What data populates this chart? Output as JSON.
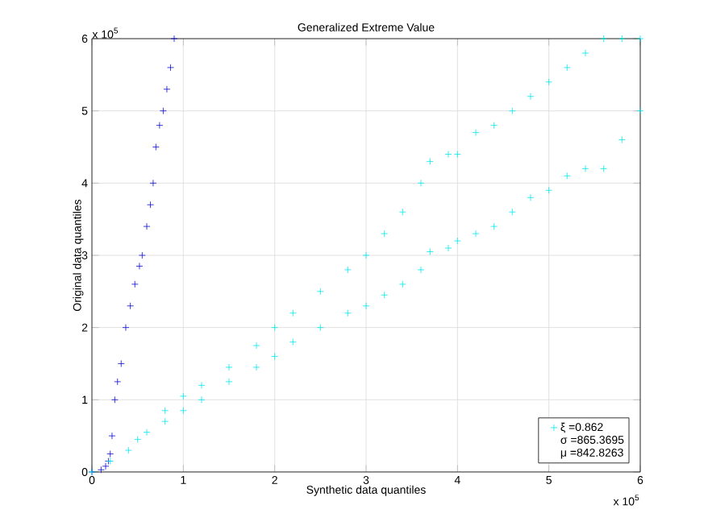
{
  "chart_data": {
    "type": "scatter",
    "title": "Generalized Extreme Value",
    "xlabel": "Synthetic data quantiles",
    "ylabel": "Original data quantiles",
    "xlim": [
      0,
      6
    ],
    "ylim": [
      0,
      6
    ],
    "xticks": [
      0,
      1,
      2,
      3,
      4,
      5,
      6
    ],
    "yticks": [
      0,
      1,
      2,
      3,
      4,
      5,
      6
    ],
    "grid": true,
    "marker": "cross",
    "legend": "bottom right",
    "annotations": [
      "σ =865.3695",
      "μ =842.8263",
      "x 10$^{5}$",
      "x 10$^{5}$"
    ],
    "series": [
      {
        "color": "#0a0ad2",
        "x": [
          0,
          0.1,
          0.15,
          0.18,
          0.2,
          0.22,
          0.25,
          0.28,
          0.32,
          0.37,
          0.42,
          0.47,
          0.52,
          0.55,
          0.6,
          0.64,
          0.67,
          0.7,
          0.74,
          0.78,
          0.82,
          0.86,
          0.9
        ],
        "values": [
          0,
          0.03,
          0.08,
          0.15,
          0.25,
          0.5,
          1.0,
          1.25,
          1.5,
          2.0,
          2.3,
          2.6,
          2.85,
          3.0,
          3.4,
          3.7,
          4.0,
          4.5,
          4.8,
          5.0,
          5.3,
          5.6,
          6.0
        ]
      },
      {
        "name": "ξ =0.862",
        "color": "#00e8f0",
        "x": [
          0,
          0.2,
          0.4,
          0.5,
          0.6,
          0.8,
          0.8,
          1.0,
          1.0,
          1.2,
          1.2,
          1.5,
          1.5,
          1.8,
          1.8,
          2.0,
          2.0,
          2.2,
          2.2,
          2.5,
          2.5,
          2.8,
          2.8,
          3.0,
          3.0,
          3.2,
          3.2,
          3.4,
          3.4,
          3.6,
          3.6,
          3.7,
          3.7,
          3.9,
          3.9,
          4.0,
          4.0,
          4.2,
          4.2,
          4.4,
          4.4,
          4.6,
          4.6,
          4.8,
          4.8,
          5.0,
          5.0,
          5.2,
          5.2,
          5.4,
          5.4,
          5.6,
          5.6,
          5.8,
          5.8,
          6.0,
          6.0
        ],
        "values": [
          0,
          0.15,
          0.3,
          0.45,
          0.55,
          0.7,
          0.85,
          0.85,
          1.05,
          1.0,
          1.2,
          1.25,
          1.45,
          1.45,
          1.75,
          1.6,
          2.0,
          1.8,
          2.2,
          2.0,
          2.5,
          2.2,
          2.8,
          2.3,
          3.0,
          2.45,
          3.3,
          2.6,
          3.6,
          2.8,
          4.0,
          3.05,
          4.3,
          3.1,
          4.4,
          3.2,
          4.4,
          3.3,
          4.7,
          3.4,
          4.8,
          3.6,
          5.0,
          3.8,
          5.2,
          3.9,
          5.4,
          4.1,
          5.6,
          4.2,
          5.8,
          4.2,
          6.0,
          4.6,
          6.0,
          5.0,
          6.0
        ]
      }
    ]
  }
}
